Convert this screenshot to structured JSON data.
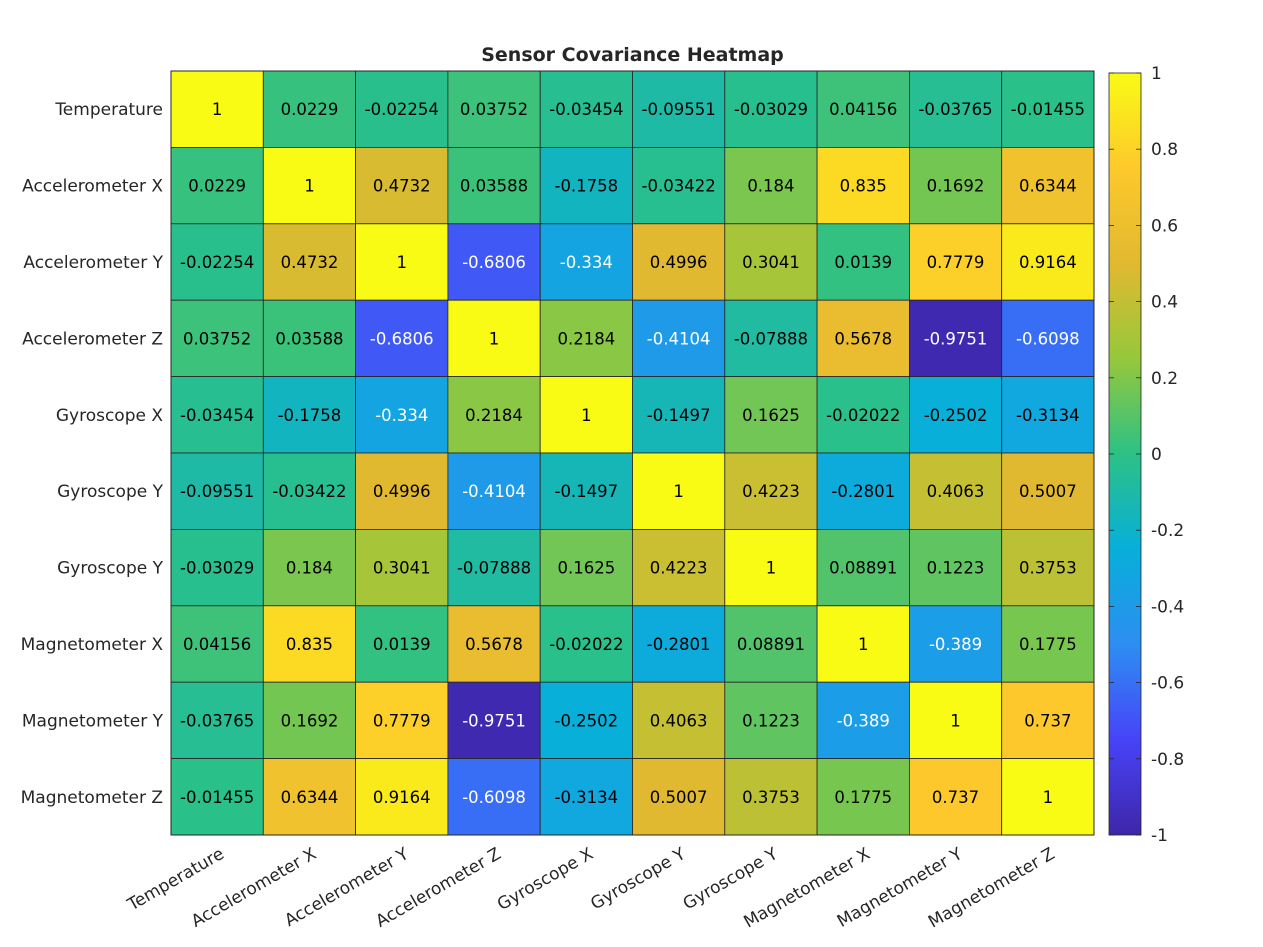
{
  "chart_data": {
    "type": "heatmap",
    "title": "Sensor Covariance Heatmap",
    "xlabel": "",
    "ylabel": "",
    "x_categories": [
      "Temperature",
      "Accelerometer X",
      "Accelerometer Y",
      "Accelerometer Z",
      "Gyroscope X",
      "Gyroscope Y",
      "Gyroscope Y",
      "Magnetometer X",
      "Magnetometer Y",
      "Magnetometer Z"
    ],
    "y_categories": [
      "Temperature",
      "Accelerometer X",
      "Accelerometer Y",
      "Accelerometer Z",
      "Gyroscope X",
      "Gyroscope Y",
      "Gyroscope Y",
      "Magnetometer X",
      "Magnetometer Y",
      "Magnetometer Z"
    ],
    "values": [
      [
        "1",
        "0.0229",
        "-0.02254",
        "0.03752",
        "-0.03454",
        "-0.09551",
        "-0.03029",
        "0.04156",
        "-0.03765",
        "-0.01455"
      ],
      [
        "0.0229",
        "1",
        "0.4732",
        "0.03588",
        "-0.1758",
        "-0.03422",
        "0.184",
        "0.835",
        "0.1692",
        "0.6344"
      ],
      [
        "-0.02254",
        "0.4732",
        "1",
        "-0.6806",
        "-0.334",
        "0.4996",
        "0.3041",
        "0.0139",
        "0.7779",
        "0.9164"
      ],
      [
        "0.03752",
        "0.03588",
        "-0.6806",
        "1",
        "0.2184",
        "-0.4104",
        "-0.07888",
        "0.5678",
        "-0.9751",
        "-0.6098"
      ],
      [
        "-0.03454",
        "-0.1758",
        "-0.334",
        "0.2184",
        "1",
        "-0.1497",
        "0.1625",
        "-0.02022",
        "-0.2502",
        "-0.3134"
      ],
      [
        "-0.09551",
        "-0.03422",
        "0.4996",
        "-0.4104",
        "-0.1497",
        "1",
        "0.4223",
        "-0.2801",
        "0.4063",
        "0.5007"
      ],
      [
        "-0.03029",
        "0.184",
        "0.3041",
        "-0.07888",
        "0.1625",
        "0.4223",
        "1",
        "0.08891",
        "0.1223",
        "0.3753"
      ],
      [
        "0.04156",
        "0.835",
        "0.0139",
        "0.5678",
        "-0.02022",
        "-0.2801",
        "0.08891",
        "1",
        "-0.389",
        "0.1775"
      ],
      [
        "-0.03765",
        "0.1692",
        "0.7779",
        "-0.9751",
        "-0.2502",
        "0.4063",
        "0.1223",
        "-0.389",
        "1",
        "0.737"
      ],
      [
        "-0.01455",
        "0.6344",
        "0.9164",
        "-0.6098",
        "-0.3134",
        "0.5007",
        "0.3753",
        "0.1775",
        "0.737",
        "1"
      ]
    ],
    "colorbar": {
      "range": [
        -1,
        1
      ],
      "tick_labels": [
        "1",
        "0.8",
        "0.6",
        "0.4",
        "0.2",
        "0",
        "-0.2",
        "-0.4",
        "-0.6",
        "-0.8",
        "-1"
      ],
      "tick_values": [
        1,
        0.8,
        0.6,
        0.4,
        0.2,
        0,
        -0.2,
        -0.4,
        -0.6,
        -0.8,
        -1
      ],
      "colormap": "parula",
      "colormap_stops": [
        "#3e26a8",
        "#4743f8",
        "#2d8ef2",
        "#07afd9",
        "#2cc185",
        "#96c83b",
        "#e1b930",
        "#fdc92b",
        "#f9fb15"
      ]
    },
    "grid": true,
    "grid_color": "#262626",
    "legend": "colorbar-right"
  }
}
